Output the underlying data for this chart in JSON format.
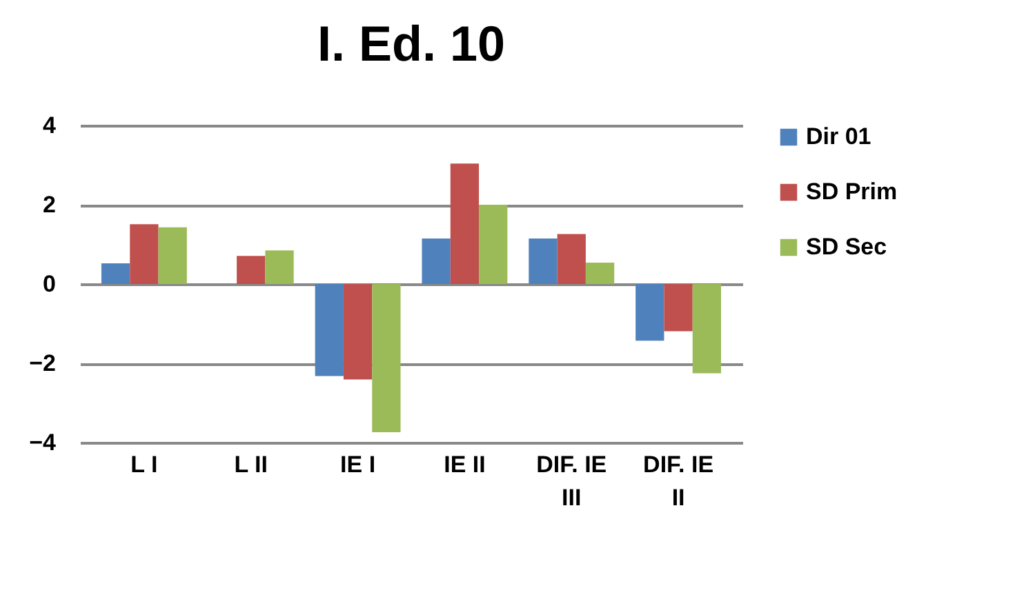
{
  "chart_data": {
    "type": "bar",
    "title": "I. Ed. 10",
    "categories": [
      "L I",
      "L II",
      "IE I",
      "IE II",
      "DIF. IE III",
      "DIF. IE II"
    ],
    "series": [
      {
        "name": "Dir 01",
        "color": "#4f81bd",
        "values": [
          0.52,
          0,
          -2.32,
          1.15,
          1.15,
          -1.43
        ]
      },
      {
        "name": "SD Prim",
        "color": "#c0504d",
        "values": [
          1.51,
          0.71,
          -2.41,
          3.04,
          1.26,
          -1.19
        ]
      },
      {
        "name": "SD Sec",
        "color": "#9bbb59",
        "values": [
          1.43,
          0.85,
          -3.74,
          2.0,
          0.54,
          -2.25
        ]
      }
    ],
    "ylim": [
      -4,
      4
    ],
    "yticks": [
      -4,
      -2,
      0,
      2,
      4
    ],
    "grid": true,
    "legend": "right"
  }
}
